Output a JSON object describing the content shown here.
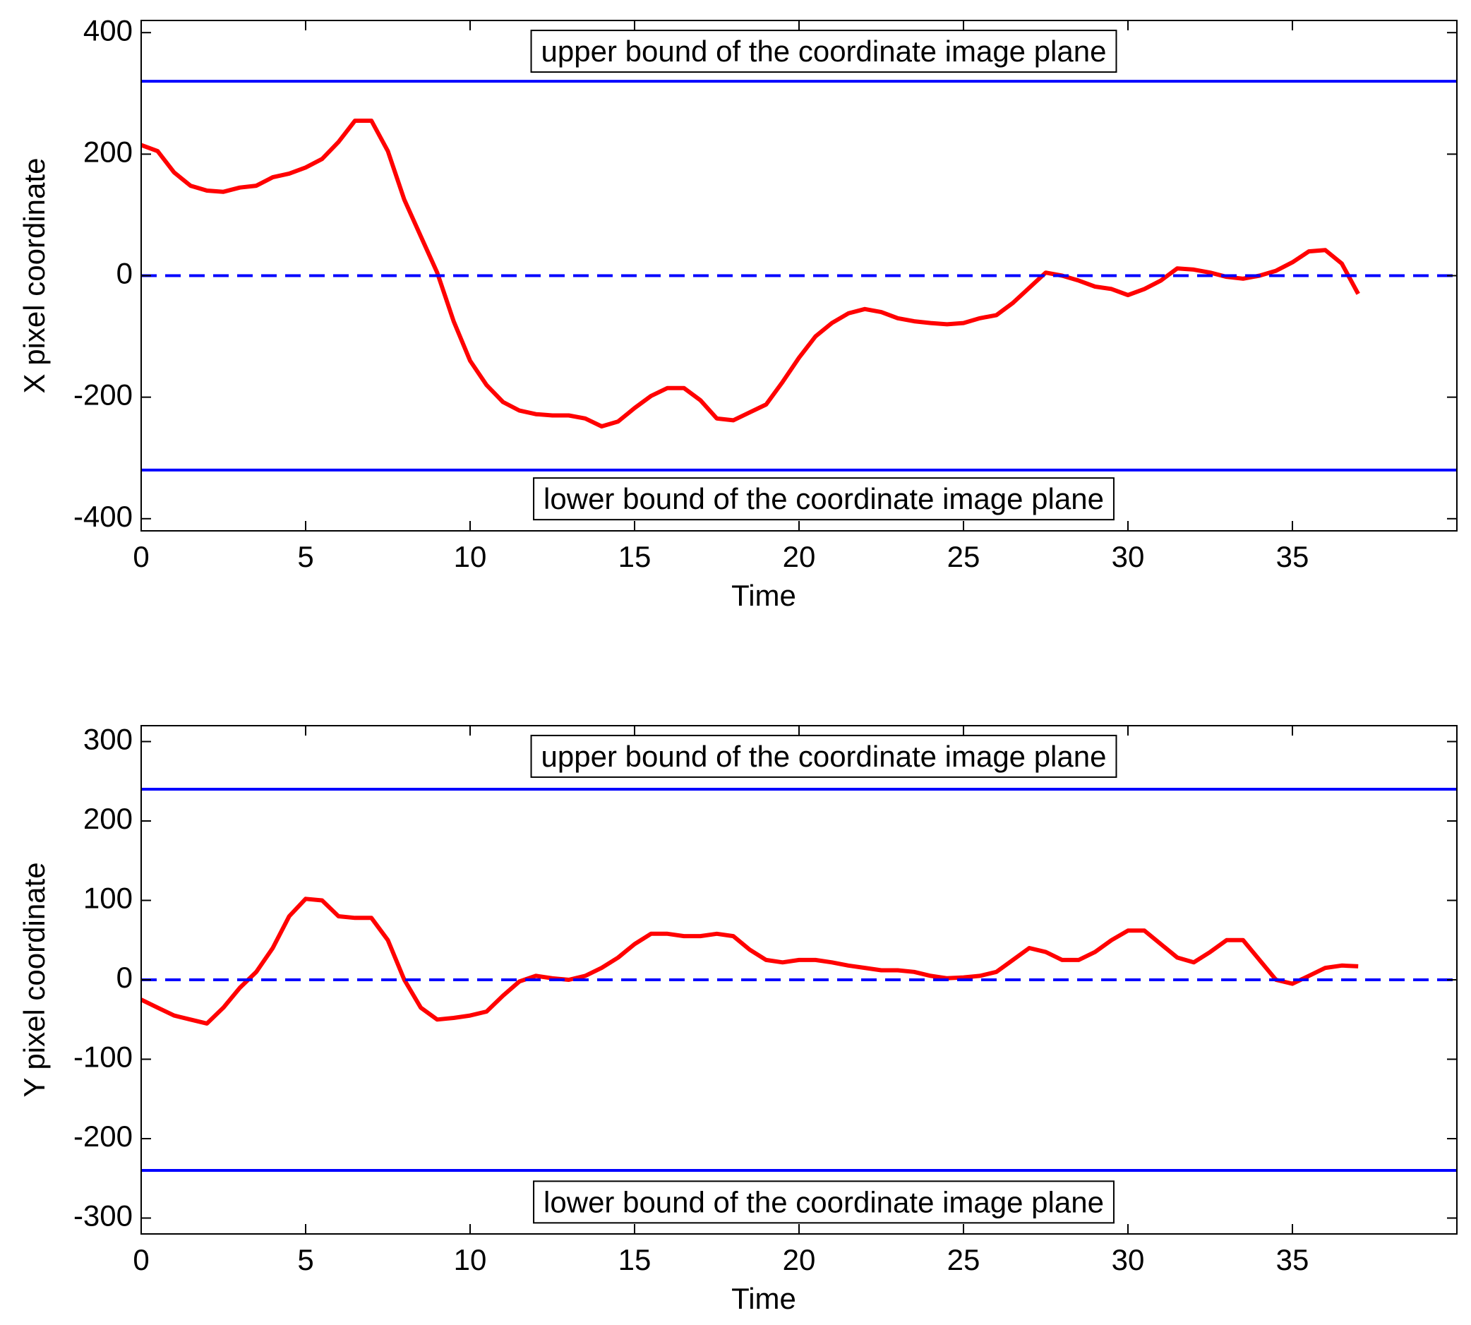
{
  "chart_data": [
    {
      "type": "line",
      "x_label": "Time",
      "y_label": "X pixel coordinate",
      "xlim": [
        0,
        40
      ],
      "xticks": [
        0,
        5,
        10,
        15,
        20,
        25,
        30,
        35
      ],
      "ylim": [
        -420,
        420
      ],
      "yticks": [
        -400,
        -200,
        0,
        200,
        400
      ],
      "annotations": [
        {
          "text": "upper bound of the coordinate image plane",
          "position": "top"
        },
        {
          "text": "lower bound of the coordinate image plane",
          "position": "bottom"
        }
      ],
      "series": [
        {
          "color": "#ff0000",
          "style": "solid",
          "x": [
            0,
            0.5,
            1,
            1.5,
            2,
            2.5,
            3,
            3.5,
            4,
            4.5,
            5,
            5.5,
            6,
            6.5,
            7,
            7.5,
            8,
            8.5,
            9,
            9.5,
            10,
            10.5,
            11,
            11.5,
            12,
            12.5,
            13,
            13.5,
            14,
            14.5,
            15,
            15.5,
            16,
            16.5,
            17,
            17.5,
            18,
            18.5,
            19,
            19.5,
            20,
            20.5,
            21,
            21.5,
            22,
            22.5,
            23,
            23.5,
            24,
            24.5,
            25,
            25.5,
            26,
            26.5,
            27,
            27.5,
            28,
            28.5,
            29,
            29.5,
            30,
            30.5,
            31,
            31.5,
            32,
            32.5,
            33,
            33.5,
            34,
            34.5,
            35,
            35.5,
            36,
            36.5,
            37
          ],
          "values": [
            215,
            205,
            170,
            148,
            140,
            138,
            145,
            148,
            162,
            168,
            178,
            192,
            220,
            255,
            255,
            205,
            125,
            65,
            5,
            -75,
            -140,
            -180,
            -208,
            -222,
            -228,
            -230,
            -230,
            -235,
            -248,
            -240,
            -218,
            -198,
            -185,
            -185,
            -205,
            -235,
            -238,
            -225,
            -212,
            -175,
            -135,
            -100,
            -78,
            -62,
            -55,
            -60,
            -70,
            -75,
            -78,
            -80,
            -78,
            -70,
            -65,
            -45,
            -20,
            5,
            0,
            -8,
            -18,
            -22,
            -32,
            -22,
            -8,
            12,
            10,
            5,
            -2,
            -5,
            0,
            8,
            22,
            40,
            42,
            20,
            -30
          ]
        },
        {
          "color": "#0000ff",
          "style": "solid",
          "x": [
            0,
            40
          ],
          "values": [
            320,
            320
          ]
        },
        {
          "color": "#0000ff",
          "style": "solid",
          "x": [
            0,
            40
          ],
          "values": [
            -320,
            -320
          ]
        },
        {
          "color": "#0000ff",
          "style": "dashed",
          "x": [
            0,
            40
          ],
          "values": [
            0,
            0
          ]
        }
      ]
    },
    {
      "type": "line",
      "x_label": "Time",
      "y_label": "Y pixel coordinate",
      "xlim": [
        0,
        40
      ],
      "xticks": [
        0,
        5,
        10,
        15,
        20,
        25,
        30,
        35
      ],
      "ylim": [
        -320,
        320
      ],
      "yticks": [
        -300,
        -200,
        -100,
        0,
        100,
        200,
        300
      ],
      "annotations": [
        {
          "text": "upper bound of the coordinate image plane",
          "position": "top"
        },
        {
          "text": "lower bound of the coordinate image plane",
          "position": "bottom"
        }
      ],
      "series": [
        {
          "color": "#ff0000",
          "style": "solid",
          "x": [
            0,
            0.5,
            1,
            1.5,
            2,
            2.5,
            3,
            3.5,
            4,
            4.5,
            5,
            5.5,
            6,
            6.5,
            7,
            7.5,
            8,
            8.5,
            9,
            9.5,
            10,
            10.5,
            11,
            11.5,
            12,
            12.5,
            13,
            13.5,
            14,
            14.5,
            15,
            15.5,
            16,
            16.5,
            17,
            17.5,
            18,
            18.5,
            19,
            19.5,
            20,
            20.5,
            21,
            21.5,
            22,
            22.5,
            23,
            23.5,
            24,
            24.5,
            25,
            25.5,
            26,
            26.5,
            27,
            27.5,
            28,
            28.5,
            29,
            29.5,
            30,
            30.5,
            31,
            31.5,
            32,
            32.5,
            33,
            33.5,
            34,
            34.5,
            35,
            35.5,
            36,
            36.5,
            37
          ],
          "values": [
            -25,
            -35,
            -45,
            -50,
            -55,
            -35,
            -10,
            10,
            40,
            80,
            102,
            100,
            80,
            78,
            78,
            50,
            0,
            -35,
            -50,
            -48,
            -45,
            -40,
            -20,
            -2,
            5,
            2,
            0,
            5,
            15,
            28,
            45,
            58,
            58,
            55,
            55,
            58,
            55,
            38,
            25,
            22,
            25,
            25,
            22,
            18,
            15,
            12,
            12,
            10,
            5,
            2,
            3,
            5,
            10,
            25,
            40,
            35,
            25,
            25,
            35,
            50,
            62,
            62,
            45,
            28,
            22,
            35,
            50,
            50,
            25,
            0,
            -5,
            5,
            15,
            18,
            17
          ]
        },
        {
          "color": "#0000ff",
          "style": "solid",
          "x": [
            0,
            40
          ],
          "values": [
            240,
            240
          ]
        },
        {
          "color": "#0000ff",
          "style": "solid",
          "x": [
            0,
            40
          ],
          "values": [
            -240,
            -240
          ]
        },
        {
          "color": "#0000ff",
          "style": "dashed",
          "x": [
            0,
            40
          ],
          "values": [
            0,
            0
          ]
        }
      ]
    }
  ]
}
